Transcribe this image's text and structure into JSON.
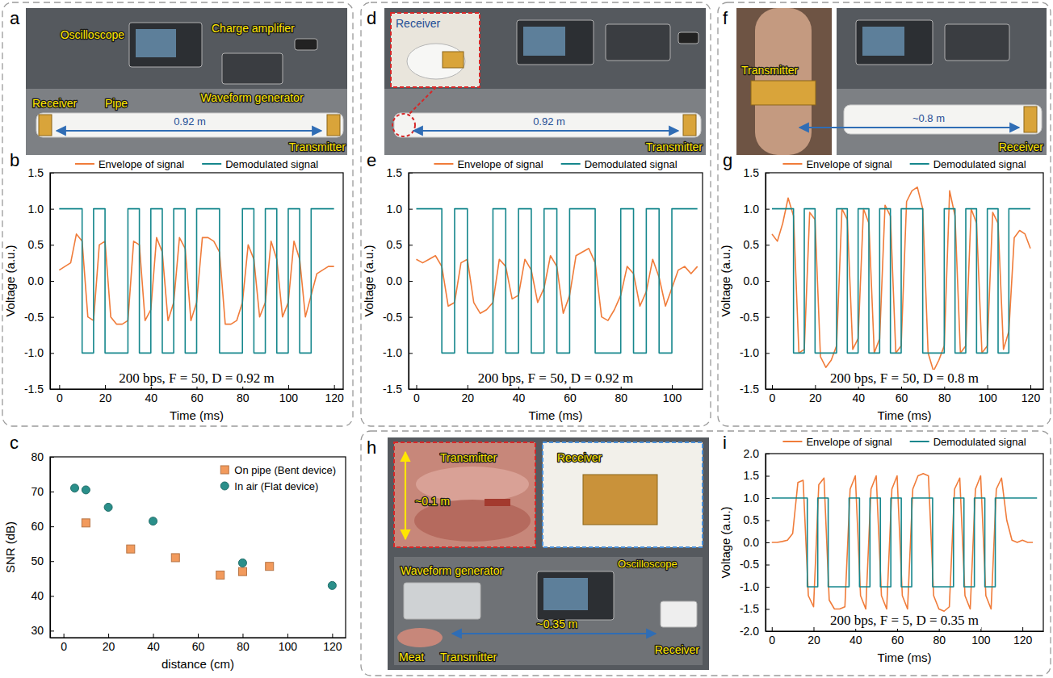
{
  "photos": [
    {
      "panel": "a",
      "labels": {
        "oscilloscope": "Oscilloscope",
        "charge_amplifier": "Charge amplifier",
        "receiver": "Receiver",
        "pipe": "Pipe",
        "distance": "0.92 m",
        "waveform_generator": "Waveform generator",
        "transmitter": "Transmitter"
      }
    },
    {
      "panel": "d",
      "labels": {
        "receiver": "Receiver",
        "distance": "0.92 m",
        "transmitter": "Transmitter"
      }
    },
    {
      "panel": "f",
      "labels": {
        "transmitter": "Transmitter",
        "distance": "~0.8 m",
        "receiver": "Receiver"
      }
    },
    {
      "panel": "h",
      "labels": {
        "transmitter_inset": "Transmitter",
        "thickness": "~0.1 m",
        "receiver_inset": "Receiver",
        "waveform_generator": "Waveform generator",
        "oscilloscope": "Oscilloscope",
        "receiver": "Receiver",
        "meat": "Meat",
        "transmitter": "Transmitter",
        "distance": "~0.35 m"
      }
    }
  ],
  "chart_data": [
    {
      "panel": "b",
      "type": "line",
      "x_label": "Time (ms)",
      "y_label": "Voltage (a.u.)",
      "xlim": [
        -4,
        124
      ],
      "xticks": [
        0,
        20,
        40,
        60,
        80,
        100,
        120
      ],
      "ylim": [
        -1.5,
        1.5
      ],
      "yticks": [
        -1.5,
        {
          "value": -1,
          "label": "-1.0"
        },
        -0.5,
        {
          "value": 0,
          "label": "0.0"
        },
        0.5,
        {
          "value": 1,
          "label": "1.0"
        },
        1.5
      ],
      "legend": "top",
      "annotations": [
        "200 bps, F = 50, D = 0.92 m"
      ],
      "series": [
        {
          "name": "Envelope of signal",
          "color": "#f07c3a",
          "line_style": "solid",
          "x": [
            0,
            2.5,
            5,
            7.5,
            10,
            12.5,
            15,
            17.5,
            20,
            22.5,
            25,
            27.5,
            30,
            32.5,
            35,
            37.5,
            40,
            42.5,
            45,
            47.5,
            50,
            52.5,
            55,
            57.5,
            60,
            62.5,
            65,
            67.5,
            70,
            72.5,
            75,
            77.5,
            80,
            82.5,
            85,
            87.5,
            90,
            92.5,
            95,
            97.5,
            100,
            102.5,
            105,
            107.5,
            110,
            112.5,
            115,
            117.5,
            120
          ],
          "values": [
            0.15,
            0.2,
            0.25,
            0.65,
            0.55,
            -0.5,
            -0.55,
            0.5,
            0.55,
            -0.5,
            -0.6,
            -0.6,
            -0.55,
            0.55,
            0.5,
            -0.55,
            -0.4,
            0.6,
            0.4,
            -0.55,
            -0.3,
            0.6,
            0.45,
            -0.55,
            -0.3,
            0.6,
            0.6,
            0.55,
            0.4,
            -0.6,
            -0.6,
            -0.55,
            -0.3,
            0.5,
            0.3,
            -0.5,
            -0.3,
            0.55,
            0.3,
            -0.5,
            -0.3,
            0.55,
            0.3,
            -0.5,
            -0.2,
            0.1,
            0.15,
            0.2,
            0.2
          ]
        },
        {
          "name": "Demodulated signal",
          "color": "#16878d",
          "line_style": "solid",
          "x": [
            0,
            10,
            10,
            15,
            15,
            20,
            20,
            30,
            30,
            35,
            35,
            40,
            40,
            45,
            45,
            50,
            50,
            55,
            55,
            60,
            60,
            70,
            70,
            80,
            80,
            85,
            85,
            90,
            90,
            95,
            95,
            100,
            100,
            105,
            105,
            110,
            110,
            120
          ],
          "values": [
            1,
            1,
            -1,
            -1,
            1,
            1,
            -1,
            -1,
            1,
            1,
            -1,
            -1,
            1,
            1,
            -1,
            -1,
            1,
            1,
            -1,
            -1,
            1,
            1,
            -1,
            -1,
            1,
            1,
            -1,
            -1,
            1,
            1,
            -1,
            -1,
            1,
            1,
            -1,
            -1,
            1,
            1
          ]
        }
      ]
    },
    {
      "panel": "c",
      "type": "scatter",
      "x_label": "distance (cm)",
      "y_label": "SNR (dB)",
      "xlim": [
        -6,
        126
      ],
      "xticks": [
        0,
        20,
        40,
        60,
        80,
        100,
        120
      ],
      "ylim": [
        28,
        80
      ],
      "yticks": [
        30,
        40,
        50,
        60,
        70,
        80
      ],
      "legend": "top-right",
      "series": [
        {
          "name": "On pipe (Bent device)",
          "color": "#f29a5c",
          "marker": "square",
          "x": [
            10,
            30,
            50,
            70,
            80,
            92
          ],
          "values": [
            61,
            53.5,
            51,
            46,
            47,
            48.5
          ]
        },
        {
          "name": "In air (Flat device)",
          "color": "#2a8f8a",
          "marker": "circle",
          "x": [
            5,
            10,
            20,
            40,
            80,
            120
          ],
          "values": [
            71,
            70.5,
            65.5,
            61.5,
            49.5,
            43
          ]
        }
      ]
    },
    {
      "panel": "e",
      "type": "line",
      "x_label": "Time (ms)",
      "y_label": "Voltage (a.u.)",
      "xlim": [
        -3,
        112
      ],
      "xticks": [
        0,
        20,
        40,
        60,
        80,
        100
      ],
      "ylim": [
        -1.5,
        1.5
      ],
      "yticks": [
        -1.5,
        {
          "value": -1,
          "label": "-1.0"
        },
        -0.5,
        {
          "value": 0,
          "label": "0.0"
        },
        0.5,
        {
          "value": 1,
          "label": "1.0"
        },
        1.5
      ],
      "legend": "top",
      "annotations": [
        "200 bps, F = 50, D = 0.92 m"
      ],
      "series": [
        {
          "name": "Envelope of signal",
          "color": "#f07c3a",
          "line_style": "solid",
          "x": [
            0,
            2.5,
            5,
            7.5,
            10,
            12.5,
            15,
            17.5,
            20,
            22.5,
            25,
            27.5,
            30,
            32.5,
            35,
            37.5,
            40,
            42.5,
            45,
            47.5,
            50,
            52.5,
            55,
            57.5,
            60,
            62.5,
            65,
            67.5,
            70,
            72.5,
            75,
            77.5,
            80,
            82.5,
            85,
            87.5,
            90,
            92.5,
            95,
            97.5,
            100,
            102.5,
            105,
            107.5,
            110
          ],
          "values": [
            0.3,
            0.25,
            0.3,
            0.35,
            0.2,
            -0.35,
            -0.3,
            0.25,
            0.3,
            -0.3,
            -0.45,
            -0.4,
            -0.3,
            0.3,
            0.2,
            -0.25,
            -0.2,
            0.3,
            0.15,
            -0.3,
            -0.1,
            0.35,
            0.2,
            -0.45,
            -0.2,
            0.35,
            0.4,
            0.45,
            0.25,
            -0.5,
            -0.55,
            -0.4,
            -0.2,
            0.2,
            0.1,
            -0.35,
            -0.15,
            0.3,
            0.05,
            -0.35,
            -0.1,
            0.15,
            0.2,
            0.1,
            0.2
          ]
        },
        {
          "name": "Demodulated signal",
          "color": "#16878d",
          "line_style": "solid",
          "x": [
            0,
            10,
            10,
            15,
            15,
            20,
            20,
            30,
            30,
            35,
            35,
            40,
            40,
            45,
            45,
            50,
            50,
            55,
            55,
            60,
            60,
            70,
            70,
            80,
            80,
            85,
            85,
            90,
            90,
            95,
            95,
            100,
            100,
            110
          ],
          "values": [
            1,
            1,
            -1,
            -1,
            1,
            1,
            -1,
            -1,
            1,
            1,
            -1,
            -1,
            1,
            1,
            -1,
            -1,
            1,
            1,
            -1,
            -1,
            1,
            1,
            -1,
            -1,
            1,
            1,
            -1,
            -1,
            1,
            1,
            -1,
            -1,
            1,
            1
          ]
        }
      ]
    },
    {
      "panel": "g",
      "type": "line",
      "x_label": "Time (ms)",
      "y_label": "Voltage (a.u.)",
      "xlim": [
        -3,
        126
      ],
      "xticks": [
        0,
        20,
        40,
        60,
        80,
        100,
        120
      ],
      "ylim": [
        -1.5,
        1.5
      ],
      "yticks": [
        -1.5,
        {
          "value": -1,
          "label": "-1.0"
        },
        -0.5,
        {
          "value": 0,
          "label": "0.0"
        },
        0.5,
        {
          "value": 1,
          "label": "1.0"
        },
        1.5
      ],
      "legend": "top",
      "annotations": [
        "200 bps, F = 50, D = 0.8 m"
      ],
      "series": [
        {
          "name": "Envelope of signal",
          "color": "#f07c3a",
          "line_style": "solid",
          "x": [
            0,
            2.5,
            5,
            7.5,
            10,
            12.5,
            15,
            17.5,
            20,
            22.5,
            25,
            27.5,
            30,
            32.5,
            35,
            37.5,
            40,
            42.5,
            45,
            47.5,
            50,
            52.5,
            55,
            57.5,
            60,
            62.5,
            65,
            67.5,
            70,
            72.5,
            75,
            77.5,
            80,
            82.5,
            85,
            87.5,
            90,
            92.5,
            95,
            97.5,
            100,
            102.5,
            105,
            107.5,
            110,
            112.5,
            115,
            117.5,
            120
          ],
          "values": [
            0.65,
            0.55,
            0.8,
            1.15,
            0.9,
            -1.0,
            -0.95,
            0.95,
            0.85,
            -1.05,
            -1.2,
            -1.1,
            -0.9,
            1.0,
            0.85,
            -0.95,
            -0.8,
            1.0,
            0.8,
            -1.0,
            -0.8,
            1.05,
            0.9,
            -1.0,
            -0.9,
            1.1,
            1.25,
            1.3,
            1.0,
            -1.0,
            -1.25,
            -1.1,
            -0.9,
            1.25,
            0.9,
            -1.0,
            -0.9,
            1.0,
            0.8,
            -1.0,
            -0.9,
            0.95,
            0.8,
            -0.95,
            -0.7,
            0.6,
            0.7,
            0.65,
            0.45
          ]
        },
        {
          "name": "Demodulated signal",
          "color": "#16878d",
          "line_style": "solid",
          "x": [
            0,
            10,
            10,
            15,
            15,
            20,
            20,
            30,
            30,
            35,
            35,
            40,
            40,
            45,
            45,
            50,
            50,
            55,
            55,
            60,
            60,
            70,
            70,
            80,
            80,
            85,
            85,
            90,
            90,
            95,
            95,
            100,
            100,
            105,
            105,
            110,
            110,
            120
          ],
          "values": [
            1,
            1,
            -1,
            -1,
            1,
            1,
            -1,
            -1,
            1,
            1,
            -1,
            -1,
            1,
            1,
            -1,
            -1,
            1,
            1,
            -1,
            -1,
            1,
            1,
            -1,
            -1,
            1,
            1,
            -1,
            -1,
            1,
            1,
            -1,
            -1,
            1,
            1,
            -1,
            -1,
            1,
            1
          ]
        }
      ]
    },
    {
      "panel": "i",
      "type": "line",
      "x_label": "Time (ms)",
      "y_label": "Voltage (a.u.)",
      "xlim": [
        -3,
        130
      ],
      "xticks": [
        0,
        20,
        40,
        60,
        80,
        100,
        120
      ],
      "ylim": [
        -2,
        2
      ],
      "yticks": [
        {
          "value": -2,
          "label": "-2.0"
        },
        -1.5,
        {
          "value": -1,
          "label": "-1.0"
        },
        -0.5,
        {
          "value": 0,
          "label": "0.0"
        },
        0.5,
        {
          "value": 1,
          "label": "1.0"
        },
        1.5,
        {
          "value": 2,
          "label": "2.0"
        }
      ],
      "legend": "top",
      "annotations": [
        "200 bps, F = 5, D = 0.35 m"
      ],
      "series": [
        {
          "name": "Envelope of signal",
          "color": "#f07c3a",
          "line_style": "solid",
          "x": [
            0,
            2.5,
            5,
            7.5,
            10,
            12.5,
            15,
            17.5,
            20,
            22.5,
            25,
            27.5,
            30,
            32.5,
            35,
            37.5,
            40,
            42.5,
            45,
            47.5,
            50,
            52.5,
            55,
            57.5,
            60,
            62.5,
            65,
            67.5,
            70,
            72.5,
            75,
            77.5,
            80,
            82.5,
            85,
            87.5,
            90,
            92.5,
            95,
            97.5,
            100,
            102.5,
            105,
            107.5,
            110,
            112.5,
            115,
            117.5,
            120,
            122.5,
            125
          ],
          "values": [
            0,
            0,
            0.02,
            0.05,
            0.2,
            1.35,
            1.4,
            -1.2,
            -1.45,
            1.3,
            1.45,
            -1.3,
            -1.5,
            -1.5,
            -1.45,
            1.2,
            1.5,
            -1.2,
            -1.5,
            1.2,
            1.5,
            -1.2,
            -1.5,
            1.2,
            1.5,
            -1.2,
            -1.5,
            1.2,
            1.5,
            1.55,
            1.5,
            -1.2,
            -1.5,
            -1.55,
            -1.45,
            1.2,
            1.45,
            -1.2,
            -1.5,
            1.2,
            1.5,
            -1.2,
            -1.5,
            1.2,
            1.45,
            0.5,
            0.05,
            0,
            0.05,
            0,
            0
          ]
        },
        {
          "name": "Demodulated signal",
          "color": "#16878d",
          "line_style": "solid",
          "x": [
            0,
            17,
            17,
            22,
            22,
            27,
            27,
            37,
            37,
            42,
            42,
            47,
            47,
            52,
            52,
            57,
            57,
            62,
            62,
            67,
            67,
            77,
            77,
            87,
            87,
            92,
            92,
            97,
            97,
            102,
            102,
            107,
            107,
            127
          ],
          "values": [
            1,
            1,
            -1,
            -1,
            1,
            1,
            -1,
            -1,
            1,
            1,
            -1,
            -1,
            1,
            1,
            -1,
            -1,
            1,
            1,
            -1,
            -1,
            1,
            1,
            -1,
            -1,
            1,
            1,
            -1,
            -1,
            1,
            1,
            -1,
            -1,
            1,
            1
          ]
        }
      ]
    }
  ]
}
